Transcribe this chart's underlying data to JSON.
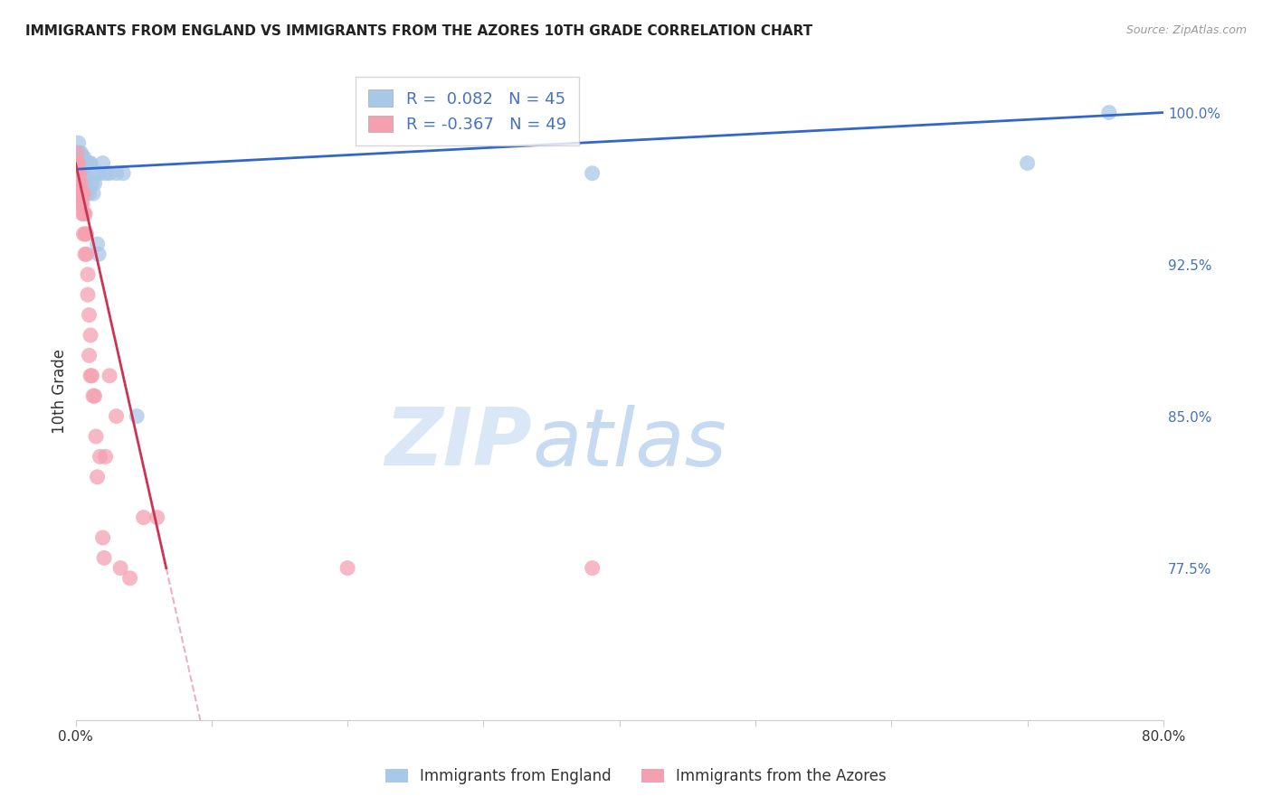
{
  "title": "IMMIGRANTS FROM ENGLAND VS IMMIGRANTS FROM THE AZORES 10TH GRADE CORRELATION CHART",
  "source": "Source: ZipAtlas.com",
  "ylabel": "10th Grade",
  "x_min": 0.0,
  "x_max": 0.8,
  "y_min": 0.7,
  "y_max": 1.025,
  "england_color": "#a8c8e8",
  "azores_color": "#f4a0b0",
  "england_line_color": "#3366cc",
  "azores_line_color": "#cc3355",
  "azores_line_dashed_color": "#f0b0c0",
  "R_england": 0.082,
  "N_england": 45,
  "R_azores": -0.367,
  "N_azores": 49,
  "watermark_zip": "ZIP",
  "watermark_atlas": "atlas",
  "england_scatter_x": [
    0.001,
    0.001,
    0.002,
    0.002,
    0.002,
    0.003,
    0.003,
    0.003,
    0.003,
    0.003,
    0.004,
    0.004,
    0.004,
    0.004,
    0.005,
    0.005,
    0.005,
    0.005,
    0.006,
    0.006,
    0.006,
    0.007,
    0.007,
    0.007,
    0.008,
    0.008,
    0.01,
    0.01,
    0.011,
    0.012,
    0.013,
    0.014,
    0.015,
    0.016,
    0.017,
    0.018,
    0.02,
    0.022,
    0.025,
    0.03,
    0.035,
    0.045,
    0.38,
    0.7,
    0.76
  ],
  "england_scatter_y": [
    0.975,
    0.98,
    0.975,
    0.98,
    0.985,
    0.975,
    0.975,
    0.978,
    0.972,
    0.98,
    0.975,
    0.98,
    0.97,
    0.975,
    0.978,
    0.975,
    0.97,
    0.975,
    0.975,
    0.97,
    0.978,
    0.965,
    0.975,
    0.97,
    0.96,
    0.975,
    0.96,
    0.975,
    0.975,
    0.965,
    0.96,
    0.965,
    0.97,
    0.935,
    0.93,
    0.97,
    0.975,
    0.97,
    0.97,
    0.97,
    0.97,
    0.85,
    0.97,
    0.975,
    1.0
  ],
  "azores_scatter_x": [
    0.001,
    0.001,
    0.001,
    0.001,
    0.001,
    0.002,
    0.002,
    0.002,
    0.002,
    0.003,
    0.003,
    0.003,
    0.004,
    0.004,
    0.004,
    0.005,
    0.005,
    0.005,
    0.006,
    0.006,
    0.006,
    0.007,
    0.007,
    0.007,
    0.008,
    0.008,
    0.009,
    0.009,
    0.01,
    0.01,
    0.011,
    0.011,
    0.012,
    0.013,
    0.014,
    0.015,
    0.016,
    0.018,
    0.02,
    0.021,
    0.022,
    0.025,
    0.03,
    0.033,
    0.04,
    0.05,
    0.06,
    0.2,
    0.38
  ],
  "azores_scatter_y": [
    0.975,
    0.98,
    0.975,
    0.97,
    0.965,
    0.975,
    0.97,
    0.965,
    0.96,
    0.97,
    0.96,
    0.955,
    0.965,
    0.955,
    0.96,
    0.96,
    0.955,
    0.95,
    0.96,
    0.95,
    0.94,
    0.95,
    0.94,
    0.93,
    0.94,
    0.93,
    0.92,
    0.91,
    0.9,
    0.88,
    0.89,
    0.87,
    0.87,
    0.86,
    0.86,
    0.84,
    0.82,
    0.83,
    0.79,
    0.78,
    0.83,
    0.87,
    0.85,
    0.775,
    0.77,
    0.8,
    0.8,
    0.775,
    0.775
  ]
}
